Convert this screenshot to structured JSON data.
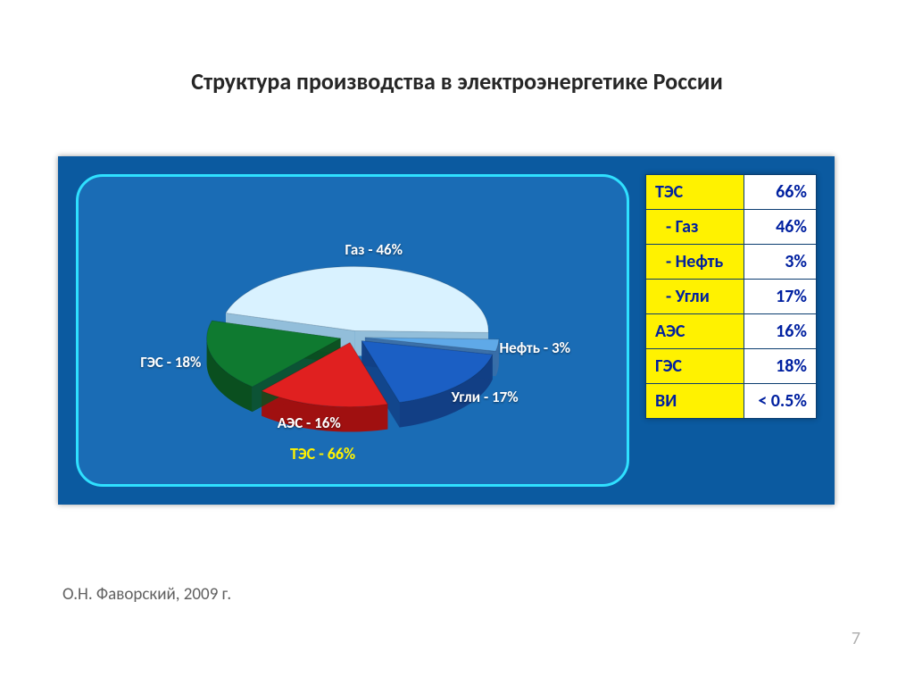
{
  "title": {
    "text": "Структура производства в электроэнергетике России",
    "fontsize": 26,
    "color": "#262626"
  },
  "source": "О.Н. Фаворский, 2009 г.",
  "page_number": "7",
  "panel": {
    "bg": "#0b5aa0",
    "chart_box_bg": "#1a6cb5",
    "chart_box_border": "#2fe0ff"
  },
  "pie": {
    "type": "pie",
    "slices": [
      {
        "name": "Газ",
        "value": 46,
        "color_top": "#d9f2ff",
        "color_side": "#a8cde0",
        "label": "Газ - 46%"
      },
      {
        "name": "Нефть",
        "value": 3,
        "color_top": "#5fa9e8",
        "color_side": "#3a6ea8",
        "label": "Нефть - 3%"
      },
      {
        "name": "Угли",
        "value": 17,
        "color_top": "#1b5fc4",
        "color_side": "#123f85",
        "label": "Угли - 17%"
      },
      {
        "name": "АЭС",
        "value": 16,
        "color_top": "#e02020",
        "color_side": "#a01010",
        "label": "АЭС - 16%"
      },
      {
        "name": "ГЭС",
        "value": 18,
        "color_top": "#0f7a30",
        "color_side": "#0a4f1f",
        "label": "ГЭС - 18%"
      }
    ],
    "explode": 14,
    "depth": 28,
    "tilt": 0.48,
    "radius": 150,
    "start_angle": 196,
    "tes_label": "ТЭС - 66%",
    "tes_label_color": "#fff200"
  },
  "legend": {
    "header_bg": "#fff200",
    "value_bg": "#ffffff",
    "text_color": "#0020a0",
    "rows": [
      {
        "label": "ТЭС",
        "value": "66%",
        "sub": false
      },
      {
        "label": "- Газ",
        "value": "46%",
        "sub": true
      },
      {
        "label": "- Нефть",
        "value": "3%",
        "sub": true
      },
      {
        "label": "- Угли",
        "value": "17%",
        "sub": true
      },
      {
        "label": "АЭС",
        "value": "16%",
        "sub": false
      },
      {
        "label": "ГЭС",
        "value": "18%",
        "sub": false
      },
      {
        "label": "ВИ",
        "value": "< 0.5%",
        "sub": false
      }
    ]
  }
}
